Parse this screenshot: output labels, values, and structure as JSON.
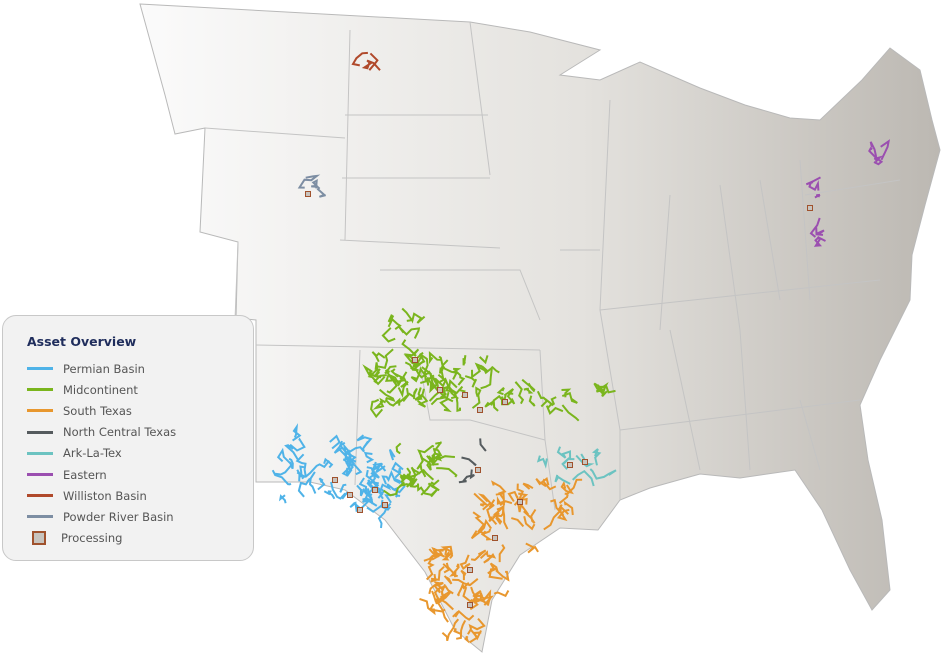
{
  "legend": {
    "title": "Asset Overview",
    "items": [
      {
        "label": "Permian Basin",
        "color": "#4fb3e8"
      },
      {
        "label": "Midcontinent",
        "color": "#7ab51d"
      },
      {
        "label": "South Texas",
        "color": "#e8972e"
      },
      {
        "label": "North Central Texas",
        "color": "#555b5e"
      },
      {
        "label": "Ark-La-Tex",
        "color": "#6cc3c1"
      },
      {
        "label": "Eastern",
        "color": "#9b4fb0"
      },
      {
        "label": "Williston Basin",
        "color": "#b0492b"
      },
      {
        "label": "Powder River Basin",
        "color": "#7d8ea3"
      }
    ],
    "processing": {
      "label": "Processing",
      "fill": "#c8c4be",
      "border": "#a0522d"
    }
  }
}
